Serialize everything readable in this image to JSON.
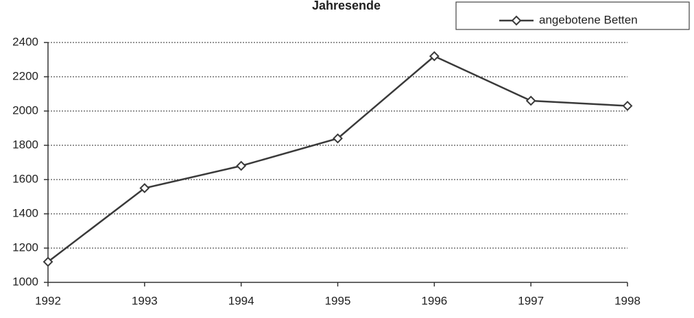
{
  "chart_data": {
    "type": "line",
    "title": "Jahresende",
    "categories": [
      "1992",
      "1993",
      "1994",
      "1995",
      "1996",
      "1997",
      "1998"
    ],
    "series": [
      {
        "name": "angebotene Betten",
        "color": "#3a3a3a",
        "values": [
          1120,
          1550,
          1680,
          1840,
          2320,
          2060,
          2030
        ]
      }
    ],
    "ylim": [
      1000,
      2400
    ],
    "yticks": [
      1000,
      1200,
      1400,
      1600,
      1800,
      2000,
      2200,
      2400
    ],
    "grid": true,
    "legend": "top-right"
  }
}
